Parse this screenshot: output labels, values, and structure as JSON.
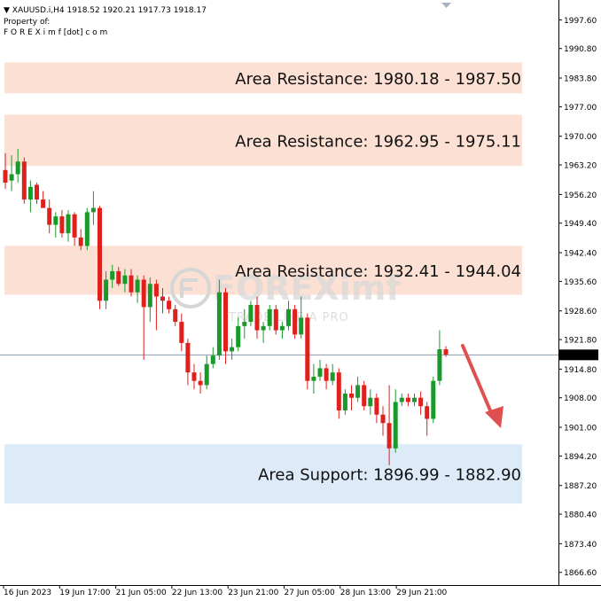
{
  "header": {
    "symbol_line": "XAUUSD.i,H4  1918.52 1920.21 1917.73 1918.17",
    "property_line": "Property of:",
    "owner_line": "F O R E X i m f [dot] c o m"
  },
  "watermark": {
    "brand": "FOREXimf",
    "tagline": "TRADE LIKE A PRO"
  },
  "colors": {
    "bull": "#1a9a2a",
    "bear": "#e0201c",
    "resistance": "#fbe0d3",
    "support": "#dcebf7",
    "arrow": "#e05050",
    "price_line": "#8a9bb0"
  },
  "chart_data": {
    "type": "candlestick",
    "symbol": "XAUUSD.i",
    "timeframe": "H4",
    "ylim": [
      1863.6,
      2002.3
    ],
    "yticks": [
      "1997.60",
      "1990.80",
      "1983.80",
      "1977.00",
      "1970.00",
      "1963.20",
      "1956.20",
      "1949.40",
      "1942.40",
      "1935.60",
      "1928.60",
      "1921.80",
      "1914.80",
      "1908.00",
      "1901.00",
      "1894.20",
      "1887.20",
      "1880.40",
      "1873.40",
      "1866.60"
    ],
    "xtick_labels": [
      "16 Jun 2023",
      "19 Jun 17:00",
      "21 Jun 05:00",
      "22 Jun 13:00",
      "23 Jun 21:00",
      "27 Jun 05:00",
      "28 Jun 13:00",
      "29 Jun 21:00"
    ],
    "current_price": "1918.17",
    "zones": [
      {
        "type": "resistance",
        "label": "Area Resistance: 1980.18 - 1987.50",
        "low": 1980.18,
        "high": 1987.5
      },
      {
        "type": "resistance",
        "label": "Area Resistance: 1962.95 - 1975.11",
        "low": 1962.95,
        "high": 1975.11
      },
      {
        "type": "resistance",
        "label": "Area Resistance: 1932.41 - 1944.04",
        "low": 1932.41,
        "high": 1944.04
      },
      {
        "type": "support",
        "label": "Area Support: 1896.99 - 1882.90",
        "low": 1882.9,
        "high": 1896.99
      }
    ],
    "candles": [
      [
        1962.0,
        1966.0,
        1957.5,
        1959.0
      ],
      [
        1959.5,
        1965.5,
        1957.0,
        1961.0
      ],
      [
        1961.0,
        1967.0,
        1959.0,
        1964.0
      ],
      [
        1964.0,
        1965.0,
        1954.0,
        1955.0
      ],
      [
        1955.0,
        1959.5,
        1952.0,
        1958.0
      ],
      [
        1958.5,
        1959.0,
        1954.0,
        1955.0
      ],
      [
        1955.0,
        1957.0,
        1953.0,
        1953.0
      ],
      [
        1953.0,
        1955.0,
        1947.0,
        1949.0
      ],
      [
        1949.0,
        1952.0,
        1946.0,
        1951.0
      ],
      [
        1951.0,
        1952.5,
        1946.0,
        1947.0
      ],
      [
        1947.0,
        1952.5,
        1945.0,
        1951.5
      ],
      [
        1951.5,
        1952.0,
        1944.0,
        1946.0
      ],
      [
        1946.0,
        1948.0,
        1943.0,
        1944.0
      ],
      [
        1944.0,
        1953.0,
        1943.0,
        1952.0
      ],
      [
        1952.0,
        1957.0,
        1949.0,
        1953.0
      ],
      [
        1953.0,
        1953.5,
        1929.0,
        1931.0
      ],
      [
        1931.0,
        1938.0,
        1929.0,
        1936.0
      ],
      [
        1936.0,
        1939.5,
        1934.0,
        1938.0
      ],
      [
        1938.0,
        1939.0,
        1934.5,
        1935.0
      ],
      [
        1935.0,
        1938.5,
        1933.0,
        1937.0
      ],
      [
        1937.0,
        1938.5,
        1932.0,
        1933.0
      ],
      [
        1933.0,
        1937.0,
        1930.5,
        1936.0
      ],
      [
        1936.0,
        1937.0,
        1917.0,
        1929.5
      ],
      [
        1929.5,
        1936.5,
        1926.0,
        1935.0
      ],
      [
        1935.0,
        1936.0,
        1924.0,
        1932.0
      ],
      [
        1932.0,
        1934.0,
        1928.0,
        1931.0
      ],
      [
        1931.0,
        1932.0,
        1928.0,
        1929.0
      ],
      [
        1929.0,
        1930.0,
        1925.0,
        1926.0
      ],
      [
        1926.0,
        1928.0,
        1919.0,
        1921.0
      ],
      [
        1921.0,
        1922.0,
        1911.0,
        1914.0
      ],
      [
        1914.0,
        1916.0,
        1910.0,
        1912.0
      ],
      [
        1912.0,
        1914.0,
        1909.0,
        1911.0
      ],
      [
        1911.0,
        1918.0,
        1910.0,
        1916.0
      ],
      [
        1916.0,
        1920.0,
        1915.0,
        1918.0
      ],
      [
        1918.0,
        1936.0,
        1917.0,
        1933.0
      ],
      [
        1933.0,
        1934.0,
        1916.0,
        1919.0
      ],
      [
        1919.0,
        1922.0,
        1917.0,
        1920.0
      ],
      [
        1920.0,
        1927.0,
        1919.0,
        1925.0
      ],
      [
        1925.0,
        1929.0,
        1922.0,
        1926.0
      ],
      [
        1926.0,
        1931.0,
        1925.0,
        1930.0
      ],
      [
        1930.0,
        1932.0,
        1922.0,
        1924.0
      ],
      [
        1924.0,
        1926.0,
        1921.0,
        1925.0
      ],
      [
        1925.0,
        1930.0,
        1924.0,
        1929.0
      ],
      [
        1929.0,
        1930.0,
        1923.0,
        1924.0
      ],
      [
        1924.0,
        1926.0,
        1922.0,
        1925.0
      ],
      [
        1925.0,
        1931.0,
        1924.0,
        1929.0
      ],
      [
        1929.0,
        1930.0,
        1922.0,
        1923.0
      ],
      [
        1923.0,
        1932.0,
        1922.0,
        1927.0
      ],
      [
        1927.0,
        1928.0,
        1910.0,
        1912.0
      ],
      [
        1912.0,
        1916.0,
        1909.0,
        1913.0
      ],
      [
        1913.0,
        1917.0,
        1912.0,
        1915.0
      ],
      [
        1915.0,
        1916.0,
        1910.0,
        1912.0
      ],
      [
        1912.0,
        1916.0,
        1911.0,
        1914.0
      ],
      [
        1914.0,
        1915.0,
        1903.0,
        1905.0
      ],
      [
        1905.0,
        1910.0,
        1904.0,
        1909.0
      ],
      [
        1909.0,
        1911.0,
        1905.0,
        1908.0
      ],
      [
        1908.0,
        1913.0,
        1907.0,
        1911.0
      ],
      [
        1911.0,
        1912.0,
        1905.0,
        1906.0
      ],
      [
        1906.0,
        1910.0,
        1904.0,
        1908.0
      ],
      [
        1908.0,
        1909.0,
        1902.0,
        1904.0
      ],
      [
        1904.0,
        1906.0,
        1899.0,
        1902.0
      ],
      [
        1902.0,
        1911.0,
        1892.0,
        1896.0
      ],
      [
        1896.0,
        1910.0,
        1895.0,
        1907.0
      ],
      [
        1907.0,
        1909.0,
        1906.0,
        1908.0
      ],
      [
        1908.0,
        1909.0,
        1906.0,
        1907.0
      ],
      [
        1907.0,
        1909.0,
        1906.0,
        1908.0
      ],
      [
        1908.0,
        1909.5,
        1904.0,
        1906.0
      ],
      [
        1906.0,
        1907.0,
        1899.0,
        1903.0
      ],
      [
        1903.0,
        1913.0,
        1902.0,
        1912.0
      ],
      [
        1912.0,
        1924.0,
        1911.0,
        1919.5
      ],
      [
        1919.5,
        1920.2,
        1917.7,
        1918.2
      ]
    ]
  }
}
